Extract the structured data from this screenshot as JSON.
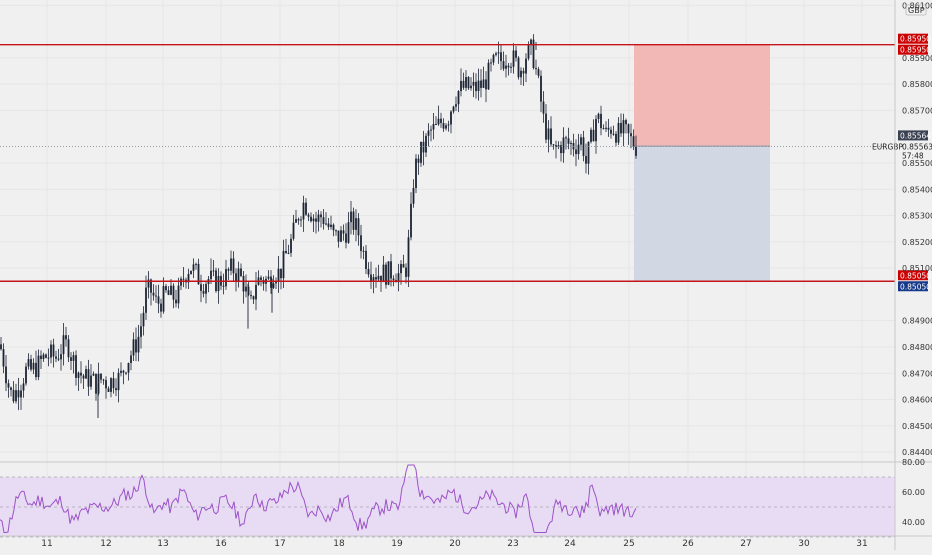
{
  "chart_data": [
    {
      "type": "candlestick",
      "symbol": "EURGBP",
      "currency": "GBP",
      "countdown": "57:48",
      "last_price": "0.85563",
      "marker_price": "0.85564",
      "x_tick_labels": [
        "11",
        "12",
        "13",
        "16",
        "17",
        "18",
        "19",
        "20",
        "23",
        "24",
        "25",
        "26",
        "27",
        "30",
        "31"
      ],
      "y_tick_labels": [
        "0.84400",
        "0.84500",
        "0.84600",
        "0.84700",
        "0.84800",
        "0.84900",
        "0.85100",
        "0.85200",
        "0.85300",
        "0.85400",
        "0.85500",
        "0.85700",
        "0.85800",
        "0.85900",
        "0.86100"
      ],
      "ylim": [
        0.8437,
        0.8612
      ],
      "horizontal_lines": [
        {
          "price": 0.8595,
          "label": "0.85950",
          "label2": "0.85950"
        },
        {
          "price": 0.8505,
          "label": "0.85050",
          "label2": "0.85050"
        }
      ],
      "position_zones": {
        "stop_zone": {
          "from": 0.85564,
          "to": 0.8595,
          "color": "#f2b8b5"
        },
        "target_zone": {
          "from": 0.8505,
          "to": 0.85564,
          "color": "#d1d8e4"
        }
      },
      "price_path": [
        [
          0,
          0.8481
        ],
        [
          4,
          0.8474
        ],
        [
          8,
          0.8466
        ],
        [
          12,
          0.8461
        ],
        [
          16,
          0.8463
        ],
        [
          20,
          0.8466
        ],
        [
          26,
          0.8471
        ],
        [
          32,
          0.8471
        ],
        [
          38,
          0.8473
        ],
        [
          44,
          0.8476
        ],
        [
          50,
          0.8477
        ],
        [
          56,
          0.8476
        ],
        [
          62,
          0.848
        ],
        [
          68,
          0.8481
        ],
        [
          72,
          0.8476
        ],
        [
          78,
          0.8471
        ],
        [
          84,
          0.8468
        ],
        [
          90,
          0.8468
        ],
        [
          96,
          0.8466
        ],
        [
          102,
          0.8468
        ],
        [
          108,
          0.8466
        ],
        [
          114,
          0.8468
        ],
        [
          120,
          0.8468
        ],
        [
          126,
          0.8474
        ],
        [
          132,
          0.8478
        ],
        [
          138,
          0.8483
        ],
        [
          142,
          0.849
        ],
        [
          146,
          0.85
        ],
        [
          150,
          0.8502
        ],
        [
          156,
          0.8497
        ],
        [
          160,
          0.8497
        ],
        [
          166,
          0.85
        ],
        [
          172,
          0.8499
        ],
        [
          178,
          0.8499
        ],
        [
          184,
          0.8507
        ],
        [
          190,
          0.8511
        ],
        [
          196,
          0.8508
        ],
        [
          202,
          0.8504
        ],
        [
          208,
          0.8506
        ],
        [
          214,
          0.8505
        ],
        [
          220,
          0.8505
        ],
        [
          226,
          0.8507
        ],
        [
          232,
          0.851
        ],
        [
          238,
          0.8508
        ],
        [
          244,
          0.8504
        ],
        [
          250,
          0.8494
        ],
        [
          256,
          0.8505
        ],
        [
          262,
          0.8506
        ],
        [
          268,
          0.8505
        ],
        [
          274,
          0.8509
        ],
        [
          280,
          0.8508
        ],
        [
          286,
          0.8515
        ],
        [
          292,
          0.8521
        ],
        [
          298,
          0.853
        ],
        [
          304,
          0.8535
        ],
        [
          310,
          0.8532
        ],
        [
          316,
          0.8528
        ],
        [
          322,
          0.853
        ],
        [
          328,
          0.8526
        ],
        [
          334,
          0.8522
        ],
        [
          340,
          0.8522
        ],
        [
          346,
          0.8524
        ],
        [
          352,
          0.8528
        ],
        [
          358,
          0.8524
        ],
        [
          364,
          0.8515
        ],
        [
          370,
          0.851
        ],
        [
          376,
          0.8508
        ],
        [
          382,
          0.8508
        ],
        [
          388,
          0.8508
        ],
        [
          394,
          0.8509
        ],
        [
          400,
          0.8507
        ],
        [
          406,
          0.851
        ],
        [
          410,
          0.8525
        ],
        [
          414,
          0.8546
        ],
        [
          418,
          0.8552
        ],
        [
          424,
          0.8556
        ],
        [
          430,
          0.8562
        ],
        [
          436,
          0.8563
        ],
        [
          442,
          0.8566
        ],
        [
          448,
          0.8567
        ],
        [
          454,
          0.8575
        ],
        [
          460,
          0.8578
        ],
        [
          466,
          0.8579
        ],
        [
          472,
          0.8578
        ],
        [
          478,
          0.8579
        ],
        [
          484,
          0.858
        ],
        [
          490,
          0.8585
        ],
        [
          496,
          0.8589
        ],
        [
          502,
          0.8589
        ],
        [
          508,
          0.8591
        ],
        [
          514,
          0.8589
        ],
        [
          520,
          0.8585
        ],
        [
          526,
          0.8591
        ],
        [
          532,
          0.8593
        ],
        [
          536,
          0.8585
        ],
        [
          540,
          0.8576
        ],
        [
          544,
          0.8565
        ],
        [
          548,
          0.856
        ],
        [
          552,
          0.8554
        ],
        [
          558,
          0.8556
        ],
        [
          564,
          0.8558
        ],
        [
          570,
          0.8557
        ],
        [
          576,
          0.8557
        ],
        [
          582,
          0.8559
        ],
        [
          586,
          0.855
        ],
        [
          592,
          0.856
        ],
        [
          596,
          0.8567
        ],
        [
          600,
          0.8566
        ],
        [
          606,
          0.8561
        ],
        [
          612,
          0.8564
        ],
        [
          618,
          0.8561
        ],
        [
          624,
          0.8562
        ],
        [
          630,
          0.8559
        ],
        [
          636,
          0.85563
        ]
      ],
      "rsi": {
        "ylim": [
          32,
          80
        ],
        "levels": [
          70,
          50,
          30
        ],
        "y_tick_labels": [
          "80.00",
          "60.00",
          "40.00"
        ],
        "band_color": "#e8dcf5",
        "line_color": "#9c52c7"
      }
    }
  ],
  "colors": {
    "background": "#f0f0f0",
    "candle": "#1c2434",
    "level_line": "#c4141a",
    "red_label": "#cc0000",
    "blue_label": "#163a8a",
    "dark_label": "#3a4151"
  }
}
